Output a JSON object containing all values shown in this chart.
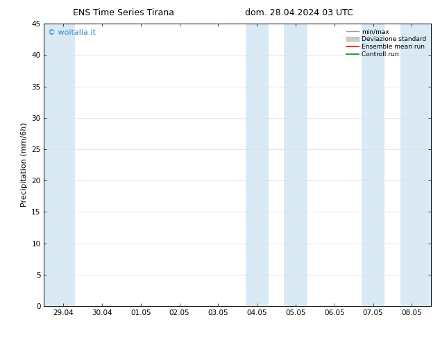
{
  "title_left": "ENS Time Series Tirana",
  "title_right": "dom. 28.04.2024 03 UTC",
  "ylabel": "Precipitation (mm/6h)",
  "ylim": [
    0,
    45
  ],
  "yticks": [
    0,
    5,
    10,
    15,
    20,
    25,
    30,
    35,
    40,
    45
  ],
  "x_labels": [
    "29.04",
    "30.04",
    "01.05",
    "02.05",
    "03.05",
    "04.05",
    "05.05",
    "06.05",
    "07.05",
    "08.05"
  ],
  "x_positions": [
    0,
    1,
    2,
    3,
    4,
    5,
    6,
    7,
    8,
    9
  ],
  "xlim": [
    -0.5,
    9.5
  ],
  "shade_bands": [
    {
      "xmin": -0.5,
      "xmax": 0.3
    },
    {
      "xmin": 4.7,
      "xmax": 5.3
    },
    {
      "xmin": 5.7,
      "xmax": 6.3
    },
    {
      "xmin": 7.7,
      "xmax": 8.3
    },
    {
      "xmin": 8.7,
      "xmax": 9.5
    }
  ],
  "shade_color": "#daeaf5",
  "background_color": "#ffffff",
  "plot_bg_color": "#ffffff",
  "watermark": "© woitalia.it",
  "watermark_color": "#3388cc",
  "legend_labels": [
    "min/max",
    "Deviazione standard",
    "Ensemble mean run",
    "Controll run"
  ],
  "legend_colors_line": [
    "#999999",
    "#bbbbbb",
    "#ff0000",
    "#008800"
  ],
  "legend_color_patch": "#cccccc",
  "title_fontsize": 9,
  "axis_fontsize": 8,
  "tick_fontsize": 7.5,
  "watermark_fontsize": 8
}
